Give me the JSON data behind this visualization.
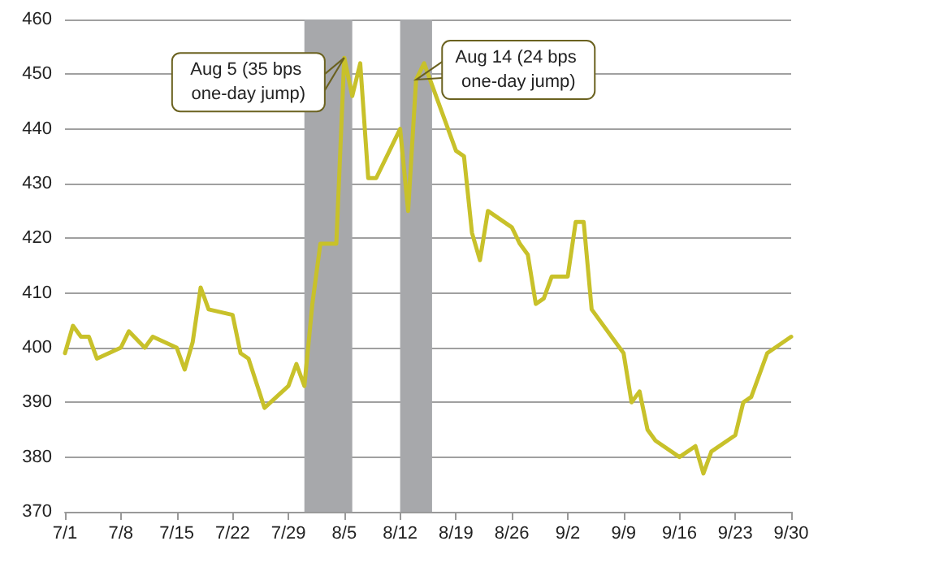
{
  "chart_data": {
    "type": "line",
    "x": [
      "--07-01",
      "--07-02",
      "--07-03",
      "--07-04",
      "--07-05",
      "--07-08",
      "--07-09",
      "--07-11",
      "--07-12",
      "--07-15",
      "--07-16",
      "--07-17",
      "--07-18",
      "--07-19",
      "--07-22",
      "--07-23",
      "--07-24",
      "--07-26",
      "--07-29",
      "--07-30",
      "--07-31",
      "--08-01",
      "--08-02",
      "--08-04",
      "--08-05",
      "--08-06",
      "--08-07",
      "--08-08",
      "--08-09",
      "--08-12",
      "--08-13",
      "--08-14",
      "--08-15",
      "--08-19",
      "--08-20",
      "--08-21",
      "--08-22",
      "--08-23",
      "--08-26",
      "--08-27",
      "--08-28",
      "--08-29",
      "--08-30",
      "--08-31",
      "--09-02",
      "--09-03",
      "--09-04",
      "--09-05",
      "--09-09",
      "--09-10",
      "--09-11",
      "--09-12",
      "--09-13",
      "--09-16",
      "--09-18",
      "--09-19",
      "--09-20",
      "--09-23",
      "--09-24",
      "--09-25",
      "--09-27",
      "--09-30"
    ],
    "series": [
      {
        "color": "#c8c12a",
        "values": [
          399,
          404,
          402,
          402,
          398,
          400,
          403,
          400,
          402,
          400,
          396,
          401,
          411,
          407,
          406,
          399,
          398,
          389,
          393,
          397,
          393,
          408,
          419,
          419,
          453,
          446,
          452,
          431,
          431,
          440,
          425,
          449,
          452,
          436,
          435,
          421,
          416,
          425,
          422,
          419,
          417,
          408,
          409,
          413,
          413,
          423,
          423,
          407,
          399,
          390,
          392,
          385,
          383,
          380,
          382,
          377,
          381,
          384,
          390,
          391,
          399,
          402
        ]
      }
    ],
    "xlim": [
      "--07-01",
      "--09-30"
    ],
    "xticks": [
      {
        "value": "--07-01",
        "label": "7/1"
      },
      {
        "value": "--07-08",
        "label": "7/8"
      },
      {
        "value": "--07-15",
        "label": "7/15"
      },
      {
        "value": "--07-22",
        "label": "7/22"
      },
      {
        "value": "--07-29",
        "label": "7/29"
      },
      {
        "value": "--08-05",
        "label": "8/5"
      },
      {
        "value": "--08-12",
        "label": "8/12"
      },
      {
        "value": "--08-19",
        "label": "8/19"
      },
      {
        "value": "--08-26",
        "label": "8/26"
      },
      {
        "value": "--09-02",
        "label": "9/2"
      },
      {
        "value": "--09-09",
        "label": "9/9"
      },
      {
        "value": "--09-16",
        "label": "9/16"
      },
      {
        "value": "--09-23",
        "label": "9/23"
      },
      {
        "value": "--09-30",
        "label": "9/30"
      }
    ],
    "ylim": [
      370,
      460
    ],
    "yticks": [
      370,
      380,
      390,
      400,
      410,
      420,
      430,
      440,
      450,
      460
    ],
    "bands": [
      {
        "axis": "x",
        "from": "--07-31",
        "to": "--08-06",
        "color": "#a7a8ab"
      },
      {
        "axis": "x",
        "from": "--08-12",
        "to": "--08-16",
        "color": "#a7a8ab"
      }
    ],
    "annotations": [
      {
        "text": "Aug 5 (35 bps one-day jump)",
        "x": "--08-05",
        "y": 453
      },
      {
        "text": "Aug 14 (24 bps one-day jump)",
        "x": "--08-14",
        "y": 449
      }
    ],
    "grid": "y",
    "marker": "none",
    "line_style": "solid"
  }
}
